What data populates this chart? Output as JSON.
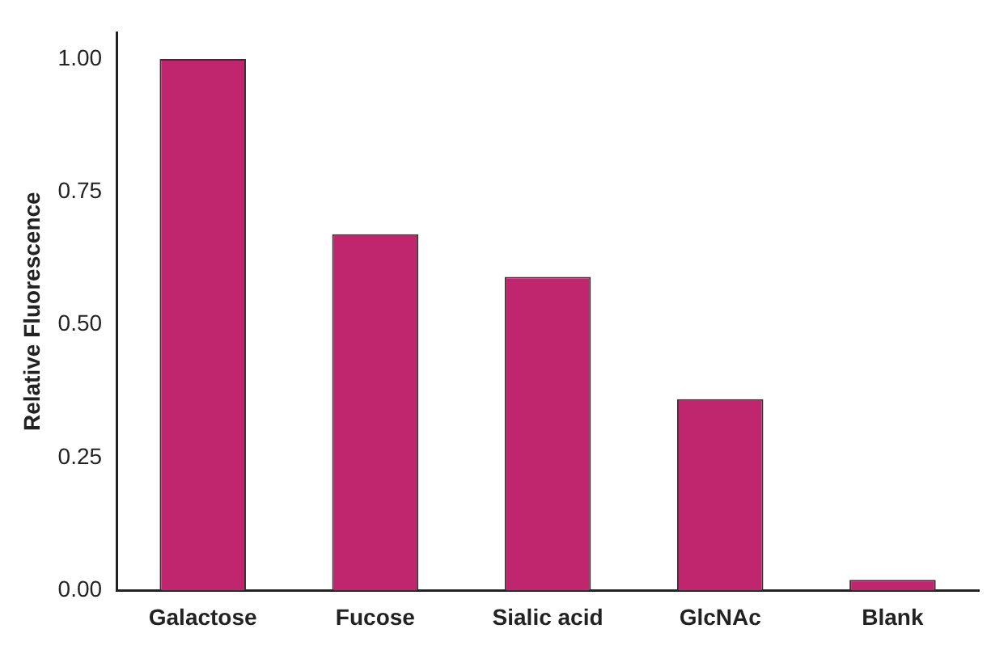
{
  "chart_data": {
    "type": "bar",
    "ylabel": "Relative Fluorescence",
    "categories": [
      "Galactose",
      "Fucose",
      "Sialic acid",
      "GlcNAc",
      "Blank"
    ],
    "values": [
      1.0,
      0.67,
      0.59,
      0.36,
      0.02
    ],
    "color": "#c0266e",
    "ylim": [
      0,
      1.05
    ],
    "yticks": [
      {
        "value": 0,
        "label": "0.00"
      },
      {
        "value": 0.25,
        "label": "0.25"
      },
      {
        "value": 0.5,
        "label": "0.50"
      },
      {
        "value": 0.75,
        "label": "0.75"
      },
      {
        "value": 1,
        "label": "1.00"
      }
    ],
    "grid": false,
    "legend": false
  }
}
